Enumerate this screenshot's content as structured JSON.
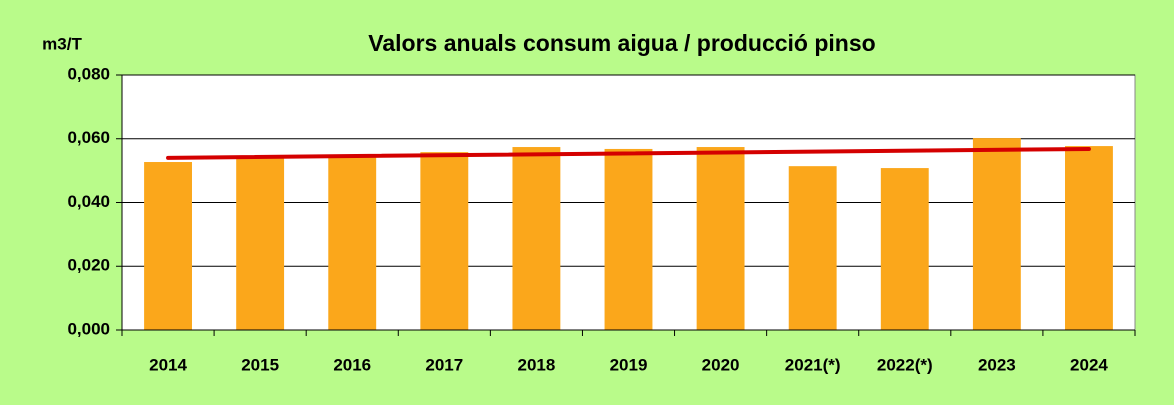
{
  "chart_data": {
    "type": "bar",
    "title": "Valors anuals consum aigua / producció pinso",
    "ylabel": "m3/T",
    "categories": [
      "2014",
      "2015",
      "2016",
      "2017",
      "2018",
      "2019",
      "2020",
      "2021(*)",
      "2022(*)",
      "2023",
      "2024"
    ],
    "values": [
      0.0527,
      0.0546,
      0.0546,
      0.0558,
      0.0574,
      0.0568,
      0.0574,
      0.0514,
      0.0508,
      0.0602,
      0.0577
    ],
    "color": "#fba71b",
    "trend": {
      "color": "#d40000",
      "values": [
        0.054,
        0.0568
      ]
    },
    "ylim": [
      0,
      0.08
    ],
    "yticks": [
      {
        "value": 0,
        "label": "0,000"
      },
      {
        "value": 0.02,
        "label": "0,020"
      },
      {
        "value": 0.04,
        "label": "0,040"
      },
      {
        "value": 0.06,
        "label": "0,060"
      },
      {
        "value": 0.08,
        "label": "0,080"
      }
    ],
    "grid": true
  }
}
